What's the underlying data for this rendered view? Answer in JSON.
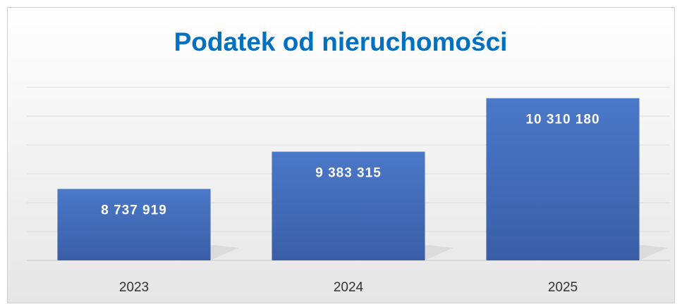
{
  "chart_data": {
    "type": "bar",
    "title": "Podatek od nieruchomości",
    "categories": [
      "2023",
      "2024",
      "2025"
    ],
    "values": [
      8737919,
      9383315,
      10310180
    ],
    "value_labels": [
      "8 737 919",
      "9 383 315",
      "10 310 180"
    ],
    "color": "#4472c4",
    "ylim": [
      7500000,
      10500000
    ],
    "yticks": [
      7500000,
      8000000,
      8500000,
      9000000,
      9500000,
      10000000,
      10500000
    ],
    "grid": true
  }
}
